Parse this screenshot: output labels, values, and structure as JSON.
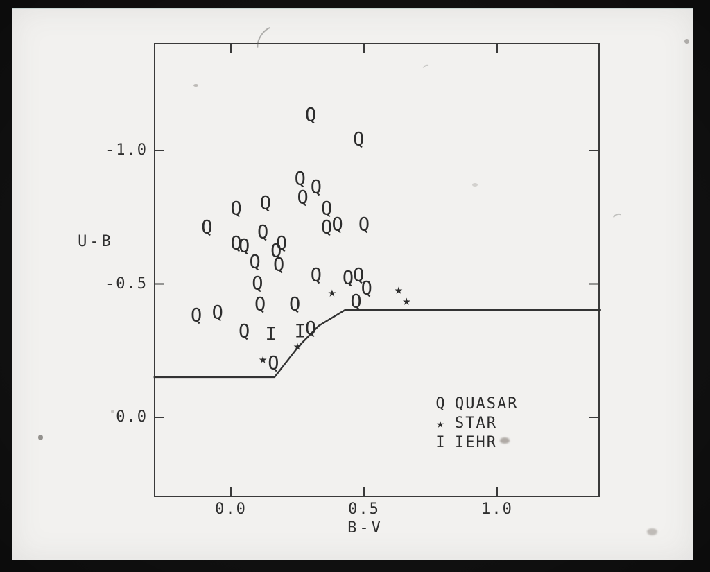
{
  "photo": {
    "background_color": "#f2f1ef",
    "frame_color": "#121212",
    "ink_color": "#2d2d2d"
  },
  "chart_data": {
    "type": "scatter",
    "title": "",
    "xlabel": "B-V",
    "ylabel": "U-B",
    "x_range": [
      -0.29,
      1.39
    ],
    "y_range_top_to_bottom": [
      -1.4,
      0.3
    ],
    "grid": false,
    "x_ticks": [
      {
        "value": 0.0,
        "label": "0.0"
      },
      {
        "value": 0.5,
        "label": "0.5"
      },
      {
        "value": 1.0,
        "label": "1.0"
      }
    ],
    "y_ticks": [
      {
        "value": -1.0,
        "label": "-1.0"
      },
      {
        "value": -0.5,
        "label": "-0.5"
      },
      {
        "value": 0.0,
        "label": "0.0"
      }
    ],
    "series": [
      {
        "name": "QUASAR",
        "marker": "Q",
        "css": "mk-q",
        "points": [
          [
            0.3,
            -1.13
          ],
          [
            0.48,
            -1.04
          ],
          [
            0.26,
            -0.89
          ],
          [
            0.32,
            -0.86
          ],
          [
            0.27,
            -0.82
          ],
          [
            0.36,
            -0.78
          ],
          [
            0.02,
            -0.78
          ],
          [
            0.13,
            -0.8
          ],
          [
            -0.09,
            -0.71
          ],
          [
            0.36,
            -0.71
          ],
          [
            0.4,
            -0.72
          ],
          [
            0.5,
            -0.72
          ],
          [
            0.12,
            -0.69
          ],
          [
            0.02,
            -0.65
          ],
          [
            0.05,
            -0.64
          ],
          [
            0.19,
            -0.65
          ],
          [
            0.17,
            -0.62
          ],
          [
            0.09,
            -0.58
          ],
          [
            0.18,
            -0.57
          ],
          [
            0.32,
            -0.53
          ],
          [
            0.44,
            -0.52
          ],
          [
            0.48,
            -0.53
          ],
          [
            0.51,
            -0.48
          ],
          [
            0.1,
            -0.5
          ],
          [
            0.47,
            -0.43
          ],
          [
            0.11,
            -0.42
          ],
          [
            0.24,
            -0.42
          ],
          [
            -0.13,
            -0.38
          ],
          [
            -0.05,
            -0.39
          ],
          [
            0.05,
            -0.32
          ],
          [
            0.3,
            -0.33
          ],
          [
            0.16,
            -0.2
          ]
        ]
      },
      {
        "name": "STAR",
        "marker": "★",
        "css": "mk-star",
        "points": [
          [
            0.38,
            -0.47
          ],
          [
            0.63,
            -0.48
          ],
          [
            0.66,
            -0.44
          ],
          [
            0.25,
            -0.27
          ],
          [
            0.12,
            -0.22
          ]
        ]
      },
      {
        "name": "IEHR",
        "marker": "I",
        "css": "mk-i",
        "points": [
          [
            0.15,
            -0.31
          ],
          [
            0.26,
            -0.32
          ]
        ]
      }
    ],
    "boundary_line": [
      [
        -0.29,
        -0.151
      ],
      [
        0.164,
        -0.151
      ],
      [
        0.253,
        -0.265
      ],
      [
        0.33,
        -0.343
      ],
      [
        0.43,
        -0.403
      ],
      [
        1.39,
        -0.403
      ]
    ],
    "legend": {
      "position": "inside-bottom-right",
      "entries": [
        {
          "symbol": "Q",
          "label": "QUASAR"
        },
        {
          "symbol": "★",
          "label": "STAR"
        },
        {
          "symbol": "I",
          "label": "IEHR"
        }
      ]
    }
  }
}
